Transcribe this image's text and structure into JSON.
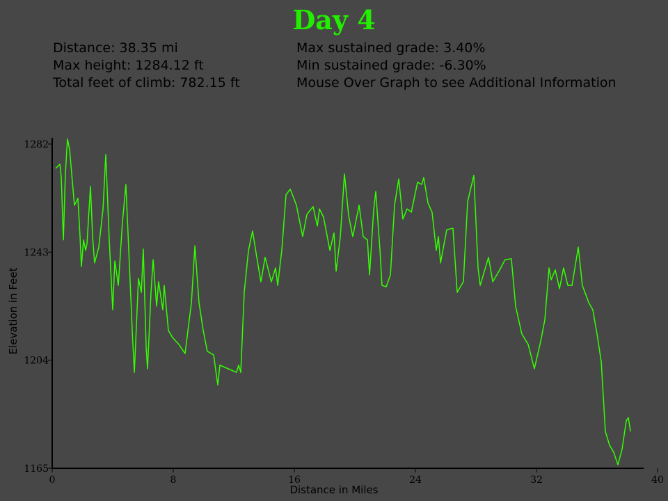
{
  "chart_data": {
    "type": "line",
    "title": "Day 4",
    "stats_left": [
      "Distance: 38.35 mi",
      "Max height: 1284.12 ft",
      "Total feet of climb: 782.15 ft"
    ],
    "stats_right": [
      "Max sustained grade: 3.40%",
      "Min sustained grade: -6.30%",
      "Mouse Over Graph to see Additional Information"
    ],
    "x_label": "Distance in Miles",
    "y_label": "Elevation in Feet",
    "xlim": [
      0,
      40
    ],
    "xticks": [
      0,
      8,
      16,
      24,
      32,
      40
    ],
    "ylim": [
      1165,
      1284
    ],
    "yticks": [
      1165,
      1204,
      1243,
      1282
    ],
    "color": "#33ff00",
    "x": [
      0.23,
      0.51,
      0.6,
      0.74,
      0.87,
      1.01,
      1.15,
      1.33,
      1.47,
      1.7,
      1.84,
      1.93,
      2.07,
      2.21,
      2.3,
      2.53,
      2.67,
      2.8,
      3.08,
      3.36,
      3.54,
      3.77,
      4.0,
      4.14,
      4.37,
      4.64,
      4.87,
      5.01,
      5.29,
      5.43,
      5.7,
      5.89,
      6.02,
      6.21,
      6.3,
      6.53,
      6.67,
      6.9,
      7.03,
      7.31,
      7.4,
      7.68,
      7.95,
      8.37,
      8.78,
      9.2,
      9.43,
      9.7,
      9.98,
      10.25,
      10.67,
      10.94,
      11.08,
      11.63,
      12.18,
      12.32,
      12.46,
      12.69,
      12.97,
      13.24,
      13.52,
      13.79,
      14.07,
      14.48,
      14.76,
      14.9,
      15.17,
      15.45,
      15.73,
      16.14,
      16.55,
      16.83,
      17.24,
      17.52,
      17.66,
      17.93,
      18.35,
      18.62,
      18.76,
      19.04,
      19.31,
      19.59,
      19.86,
      20.28,
      20.55,
      20.83,
      20.97,
      21.24,
      21.38,
      21.66,
      21.79,
      22.07,
      22.35,
      22.62,
      22.9,
      23.17,
      23.45,
      23.73,
      24.14,
      24.42,
      24.55,
      24.83,
      25.1,
      25.38,
      25.52,
      25.66,
      26.07,
      26.48,
      26.76,
      27.17,
      27.45,
      27.86,
      28.14,
      28.28,
      28.83,
      29.11,
      29.52,
      29.93,
      30.34,
      30.62,
      31.03,
      31.45,
      31.86,
      32.28,
      32.55,
      32.83,
      32.97,
      33.24,
      33.52,
      33.79,
      34.07,
      34.35,
      34.76,
      35.03,
      35.45,
      35.72,
      36.0,
      36.28,
      36.55,
      36.83,
      37.1,
      37.38,
      37.66,
      37.93,
      38.07,
      38.21
    ],
    "values": [
      1273.2,
      1274.7,
      1269.9,
      1247.4,
      1271.2,
      1283.8,
      1280.0,
      1268.7,
      1259.9,
      1262.4,
      1248.6,
      1237.8,
      1247.4,
      1243.6,
      1246.1,
      1266.7,
      1248.6,
      1239.1,
      1244.8,
      1258.6,
      1278.2,
      1247.4,
      1222.2,
      1239.8,
      1231.0,
      1253.6,
      1267.4,
      1249.9,
      1214.7,
      1199.6,
      1233.5,
      1228.5,
      1244.1,
      1208.4,
      1200.9,
      1228.5,
      1240.3,
      1223.5,
      1232.3,
      1222.2,
      1231.0,
      1214.7,
      1212.2,
      1209.7,
      1206.4,
      1224.8,
      1245.3,
      1224.8,
      1214.7,
      1207.2,
      1205.9,
      1195.1,
      1202.2,
      1200.9,
      1199.6,
      1202.2,
      1199.6,
      1228.5,
      1243.6,
      1250.6,
      1241.1,
      1232.3,
      1241.1,
      1232.3,
      1237.3,
      1231.0,
      1243.6,
      1263.7,
      1265.7,
      1259.9,
      1248.6,
      1256.6,
      1259.4,
      1252.4,
      1258.6,
      1255.6,
      1243.6,
      1249.9,
      1236.1,
      1248.6,
      1271.2,
      1256.1,
      1248.6,
      1259.9,
      1248.6,
      1247.4,
      1234.8,
      1258.1,
      1264.9,
      1243.6,
      1231.0,
      1230.5,
      1234.8,
      1259.9,
      1269.4,
      1254.9,
      1258.6,
      1257.4,
      1268.2,
      1267.4,
      1269.9,
      1260.7,
      1257.4,
      1243.6,
      1248.6,
      1239.1,
      1251.1,
      1251.6,
      1228.5,
      1232.3,
      1261.2,
      1270.7,
      1237.3,
      1231.0,
      1241.1,
      1232.3,
      1236.1,
      1240.3,
      1240.6,
      1223.5,
      1213.5,
      1209.7,
      1200.9,
      1210.9,
      1218.5,
      1237.3,
      1233.0,
      1236.6,
      1229.8,
      1237.3,
      1231.0,
      1231.0,
      1244.8,
      1231.0,
      1224.8,
      1222.2,
      1213.5,
      1203.4,
      1178.3,
      1173.3,
      1170.8,
      1166.3,
      1172.0,
      1182.1,
      1183.3,
      1178.3
    ]
  }
}
